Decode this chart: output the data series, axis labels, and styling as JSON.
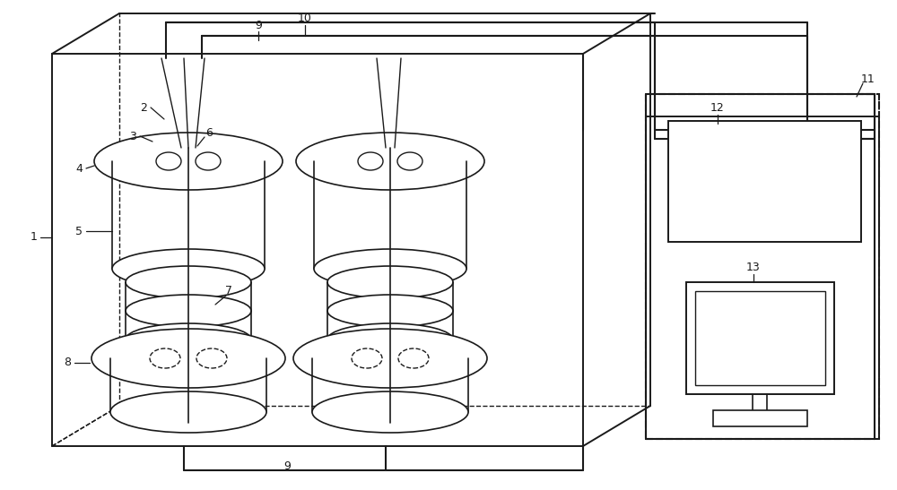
{
  "bg_color": "#ffffff",
  "line_color": "#1a1a1a",
  "fig_width": 10.0,
  "fig_height": 5.47,
  "dpi": 100
}
